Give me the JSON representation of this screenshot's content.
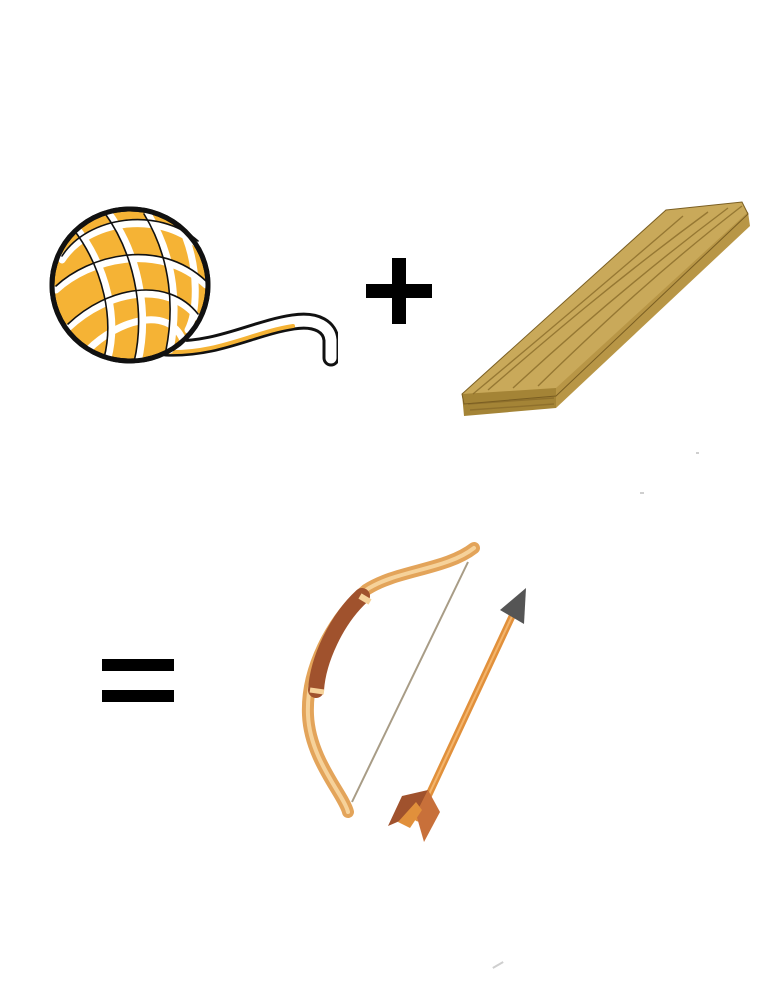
{
  "equation": {
    "operand_1": "yarn-ball-icon",
    "operator_1": "+",
    "operand_2": "wood-plank-icon",
    "operator_2": "=",
    "result": [
      "bow-icon",
      "arrow-icon"
    ]
  },
  "colors": {
    "yarn": "#F5B335",
    "yarn_outline": "#111111",
    "wood_top": "#C9A95A",
    "wood_side": "#A48436",
    "bow_dark": "#A0522D",
    "bow_light": "#E3A45A",
    "arrow_shaft": "#E1903B",
    "arrow_head": "#555555",
    "symbol": "#000000"
  }
}
